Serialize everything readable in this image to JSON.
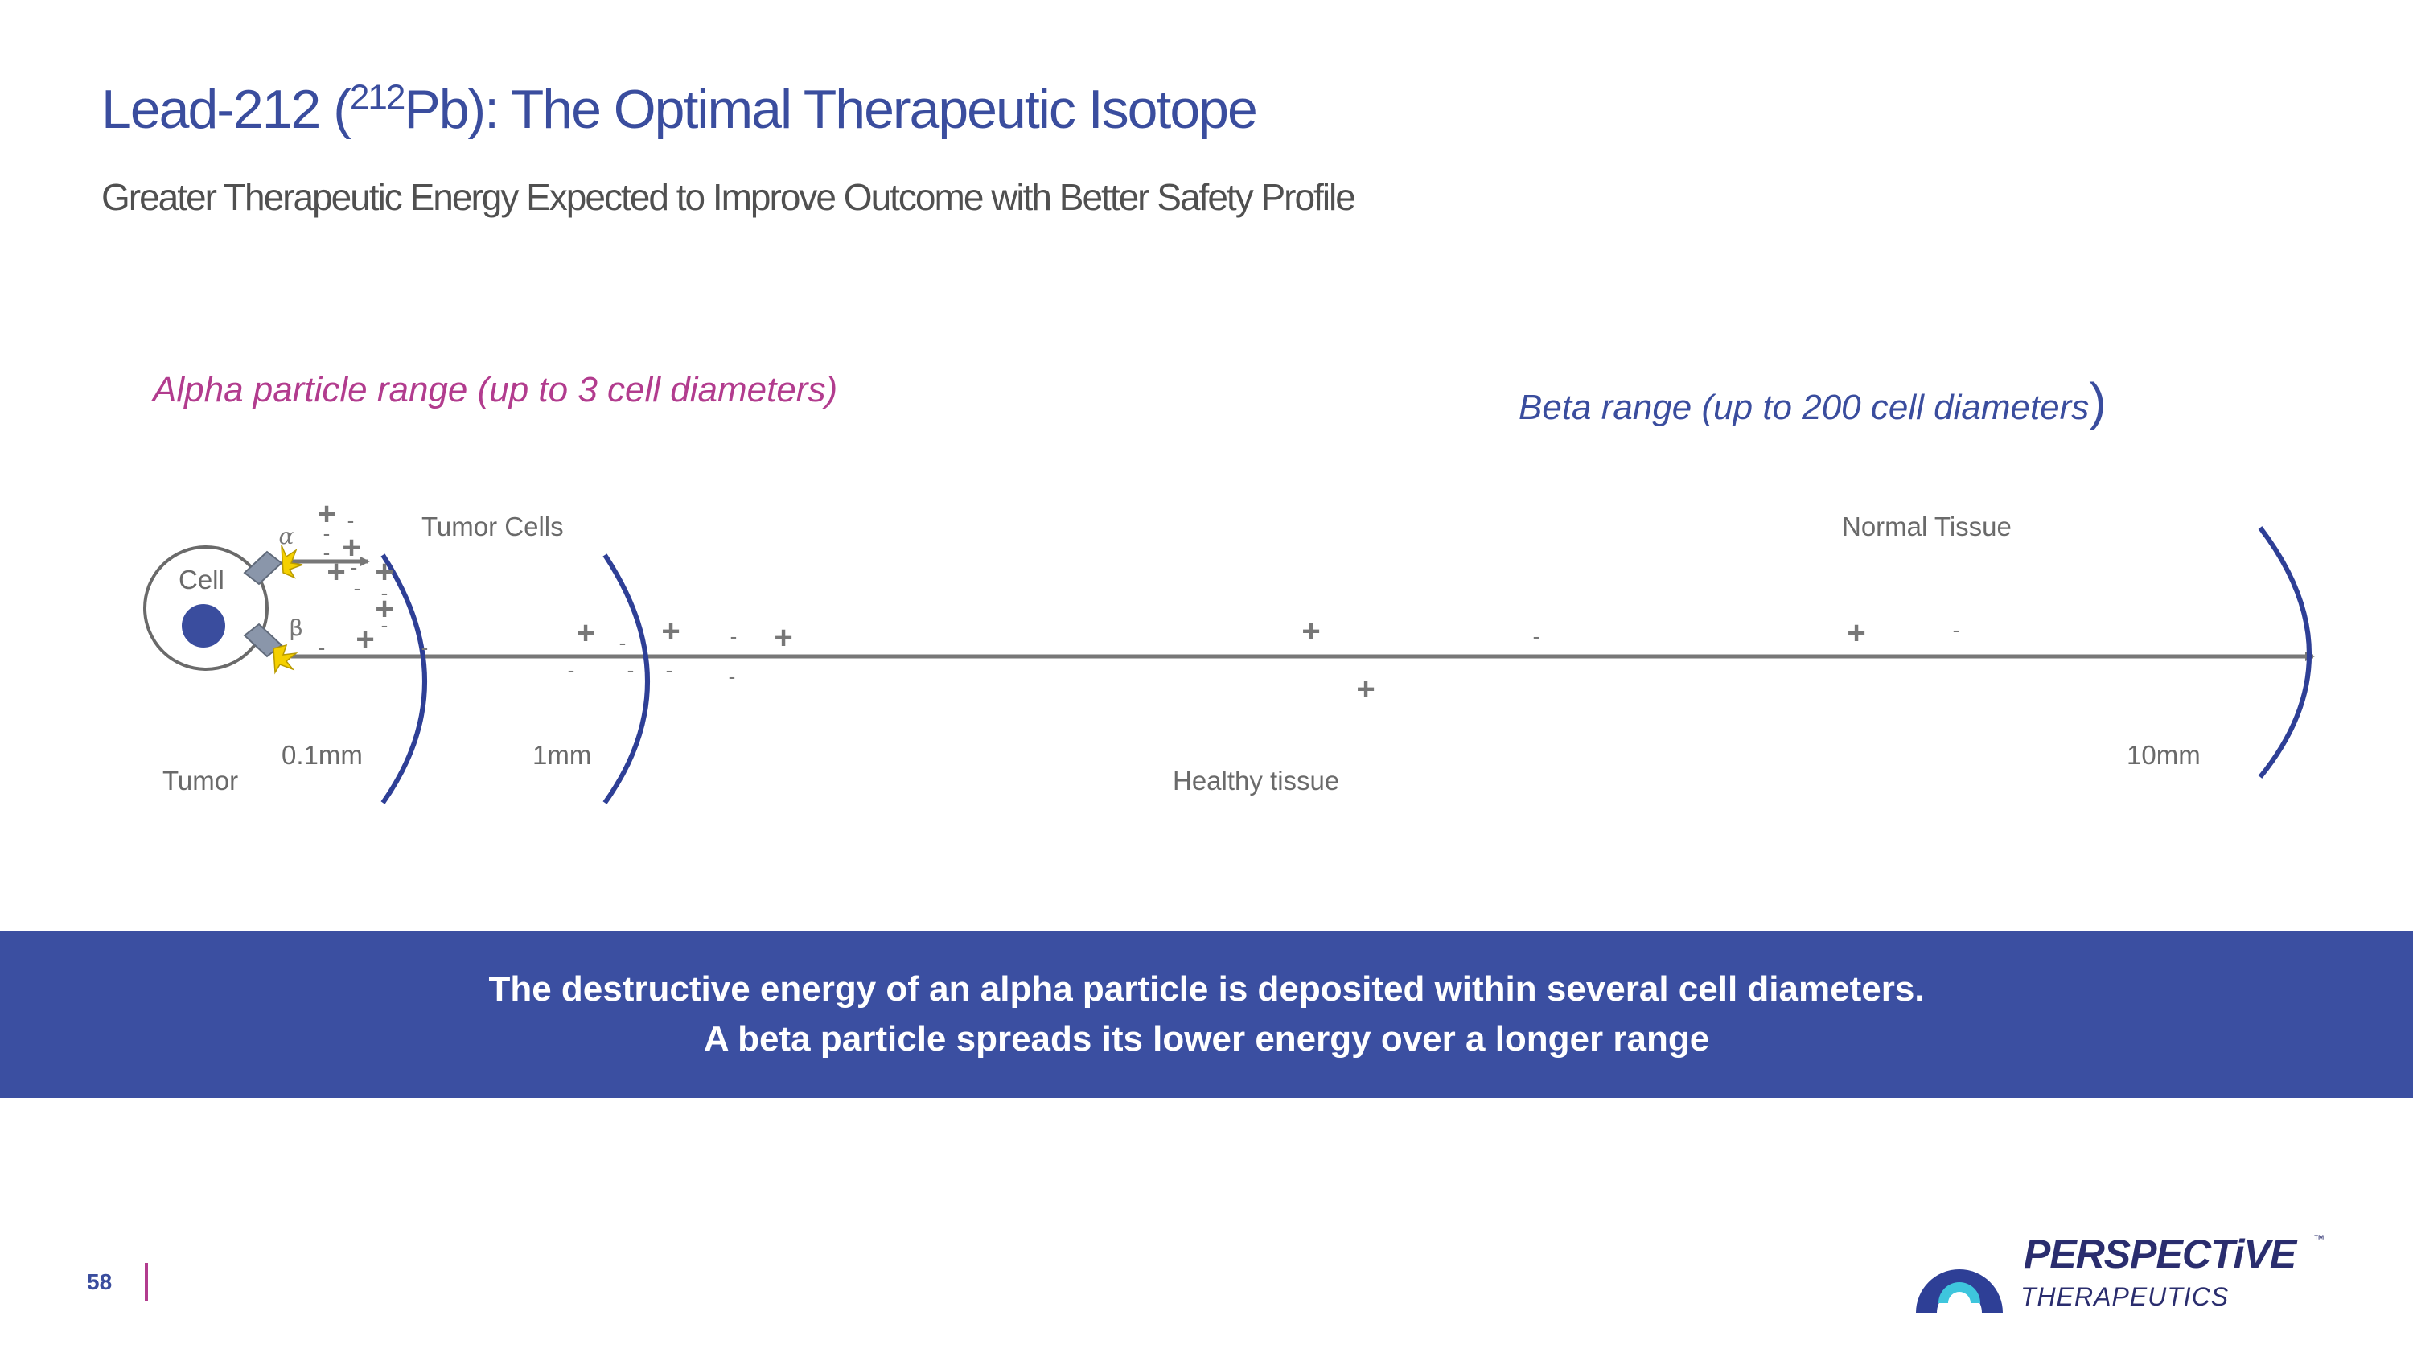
{
  "header": {
    "title_prefix": "Lead-212 (",
    "title_sup": "212",
    "title_suffix": "Pb): The Optimal Therapeutic Isotope",
    "subtitle": "Greater Therapeutic Energy Expected to Improve Outcome with Better Safety Profile"
  },
  "diagram": {
    "alpha_range_label": "Alpha particle range (up to 3 cell diameters)",
    "beta_range_label": "Beta range (up to 200 cell diameters",
    "beta_range_paren": ")",
    "cell_label": "Cell",
    "alpha_symbol": "α",
    "beta_symbol": "β",
    "tumor_cells_label": "Tumor Cells",
    "normal_tissue_label": "Normal Tissue",
    "tumor_label": "Tumor",
    "healthy_tissue_label": "Healthy tissue",
    "distance_01": "0.1mm",
    "distance_1": "1mm",
    "distance_10": "10mm",
    "plus": "+",
    "minus": "-",
    "colors": {
      "arc": "#2e3f96",
      "axis": "#777777",
      "nucleus": "#3a4d9e",
      "spark": "#f5d000"
    }
  },
  "banner": {
    "line1": "The destructive energy of an alpha particle is deposited within several cell diameters.",
    "line2": "A beta particle spreads its lower energy over a longer range"
  },
  "footer": {
    "page_number": "58",
    "logo_name": "PERSPECTiVE",
    "logo_sub": "THERAPEUTICS",
    "logo_tm": "™",
    "logo_icon": "perspective-arc-logo-icon"
  }
}
